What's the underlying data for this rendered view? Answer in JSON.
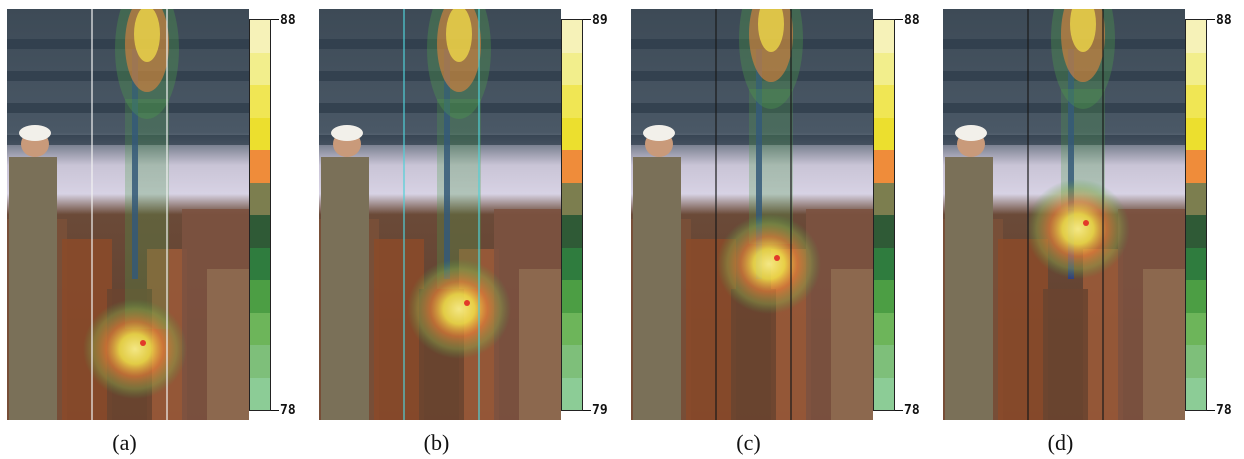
{
  "panels": [
    {
      "caption": "(a)",
      "scale_max": "88",
      "scale_min": "78",
      "grid_color": "#f2f2f2",
      "heat_low": 0.68,
      "label_prefix": "a"
    },
    {
      "caption": "(b)",
      "scale_max": "89",
      "scale_min": "79",
      "grid_color": "#4fd0d8",
      "heat_low": 0.65,
      "label_prefix": "b"
    },
    {
      "caption": "(c)",
      "scale_max": "88",
      "scale_min": "78",
      "grid_color": "#1a1a1a",
      "heat_low": 0.58,
      "label_prefix": "c"
    },
    {
      "caption": "(d)",
      "scale_max": "88",
      "scale_min": "78",
      "grid_color": "#1a1a1a",
      "heat_low": 0.5,
      "label_prefix": "d"
    }
  ],
  "colorbar": [
    "#f6f2b8",
    "#f2ee8c",
    "#f0e654",
    "#ecdf2e",
    "#ef8c3a",
    "#7c7e4f",
    "#2f5a36",
    "#2f7c3e",
    "#4c9e44",
    "#6db55a",
    "#7ebf7a",
    "#8ccc96"
  ],
  "colors": {
    "overlay_hot": "#f7e44a",
    "overlay_warm": "#f0873a",
    "overlay_mid": "#8da84a",
    "overlay_cool": "#4e9e4a",
    "marker": "#e23a2a"
  }
}
